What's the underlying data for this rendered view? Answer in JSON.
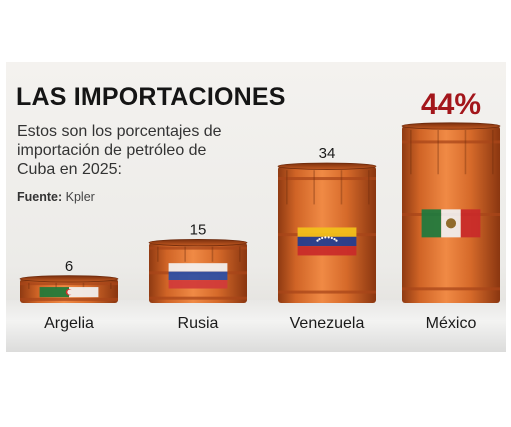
{
  "title": "LAS IMPORTACIONES",
  "subtitle": "Estos son los porcentajes de importación de petróleo de Cuba en 2025:",
  "source": {
    "label": "Fuente:",
    "value": "Kpler"
  },
  "colors": {
    "barrel": "#d4682a",
    "barrel_dark": "#a8461a",
    "highlight_value": "#a3161b",
    "text": "#1a1a1a"
  },
  "chart_data": {
    "type": "bar",
    "title": "LAS IMPORTACIONES",
    "subtitle": "Estos son los porcentajes de importación de petróleo de Cuba en 2025:",
    "xlabel": "",
    "ylabel": "",
    "unit": "%",
    "categories": [
      "Argelia",
      "Rusia",
      "Venezuela",
      "México"
    ],
    "values": [
      6,
      15,
      34,
      44
    ],
    "value_labels": [
      "6",
      "15",
      "34",
      "44%"
    ],
    "flags": [
      "algeria-flag",
      "russia-flag",
      "venezuela-flag",
      "mexico-flag"
    ],
    "highlight_index": 3,
    "ylim": [
      0,
      44
    ],
    "grid": false,
    "legend": "none"
  }
}
